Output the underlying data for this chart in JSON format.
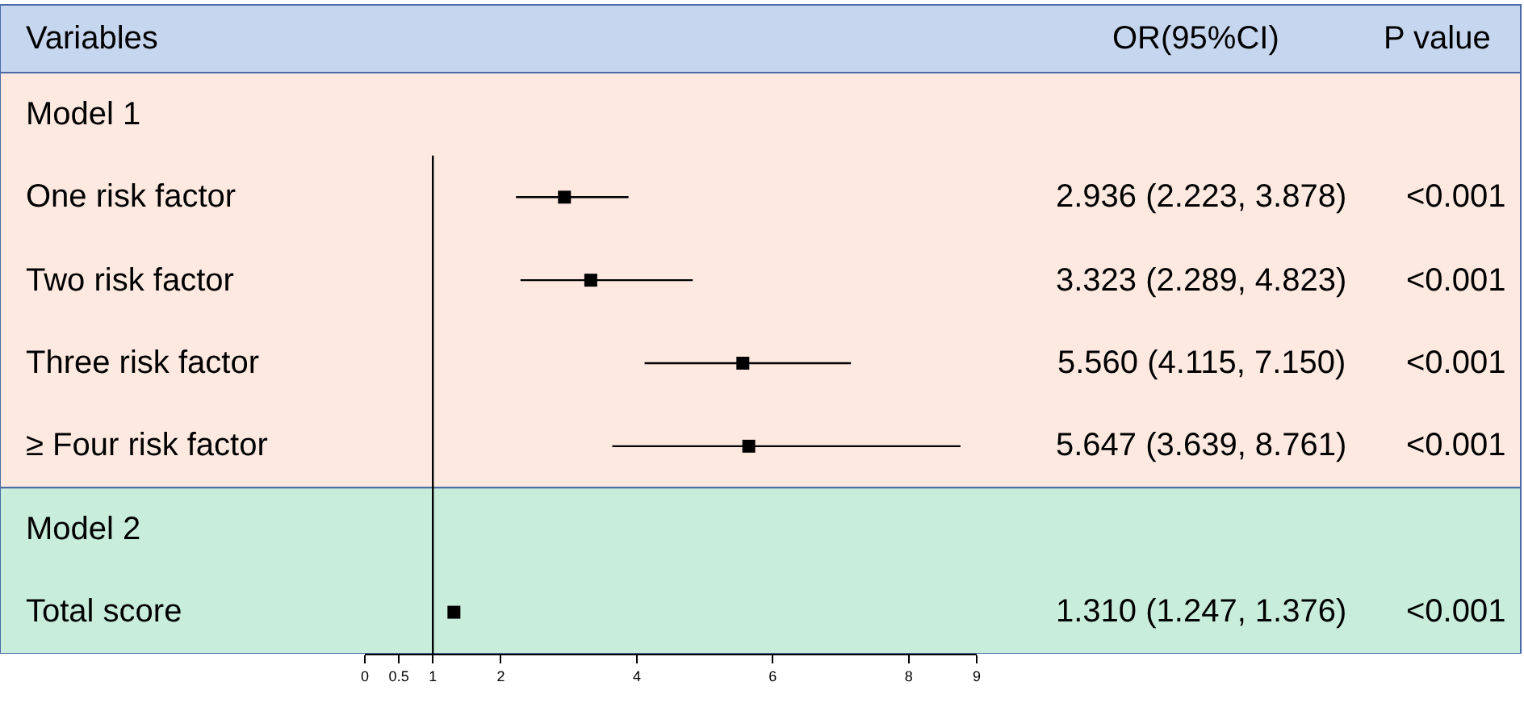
{
  "chart_data": {
    "type": "scatter",
    "ylabel": "Variables",
    "categories": [
      "Model 1",
      "One risk factor",
      "Two risk factor",
      "Three risk factor",
      "≥ Four risk factor",
      "Model 2",
      "Total score"
    ],
    "values": [
      null,
      2.936,
      3.323,
      5.56,
      5.647,
      null,
      1.31
    ],
    "errors": [
      null,
      [
        2.223,
        3.878
      ],
      [
        2.289,
        4.823
      ],
      [
        4.115,
        7.15
      ],
      [
        3.639,
        8.761
      ],
      null,
      [
        1.247,
        1.376
      ]
    ],
    "value_labels": [
      null,
      "2.936 (2.223, 3.878)",
      "3.323 (2.289, 4.823)",
      "5.560 (4.115, 7.150)",
      "5.647 (3.639, 8.761)",
      null,
      "1.310 (1.247, 1.376)"
    ],
    "color": "#000000",
    "marker": "square",
    "orientation": "horizontal",
    "xlim": [
      0,
      9
    ],
    "xticks": [
      0,
      0.5,
      1,
      2,
      4,
      6,
      8,
      9
    ],
    "ref_lines": [
      {
        "axis": "x",
        "value": 1,
        "color": "#000000"
      }
    ],
    "bands": [
      {
        "axis": "y",
        "from": "Model 1",
        "to": "≥ Four risk factor",
        "color": "#fde9e0"
      },
      {
        "axis": "y",
        "from": "Model 2",
        "to": "Total score",
        "color": "#c8eedb"
      }
    ],
    "annotations": [
      "OR(95%CI)",
      "P value",
      "<0.001",
      "<0.001",
      "<0.001",
      "<0.001",
      "<0.001"
    ],
    "grid": false,
    "legend": false
  }
}
